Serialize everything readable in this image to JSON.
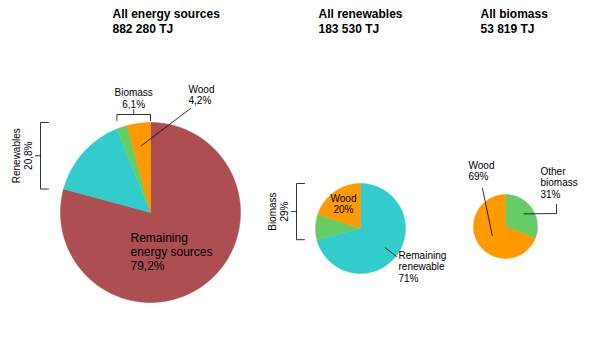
{
  "chart_data": [
    {
      "type": "pie",
      "title": "All energy sources",
      "subtitle": "882 280 TJ",
      "categories": [
        "Remaining\nenergy sources",
        null,
        null,
        "Wood"
      ],
      "values": [
        79.2,
        14.7,
        1.9,
        4.2
      ],
      "value_labels": [
        "79,2%",
        null,
        null,
        "4,2%"
      ],
      "colors": [
        "#ad4f52",
        "#33cccc",
        "#66cc66",
        "#ff9900"
      ],
      "data_labels": true,
      "groups": [
        {
          "name": "Renewables",
          "value": 20.8,
          "value_label": "20,8%"
        },
        {
          "name": "Biomass",
          "value": 6.1,
          "value_label": "6,1%"
        }
      ]
    },
    {
      "type": "pie",
      "title": "All renewables",
      "subtitle": "183 530 TJ",
      "categories": [
        "Remaining\nrenewable",
        null,
        "Wood"
      ],
      "values": [
        71,
        9,
        20
      ],
      "value_labels": [
        "71%",
        null,
        "20%"
      ],
      "colors": [
        "#33cccc",
        "#66cc66",
        "#ff9900"
      ],
      "data_labels": true,
      "groups": [
        {
          "name": "Biomass",
          "value": 29,
          "value_label": "29%"
        }
      ]
    },
    {
      "type": "pie",
      "title": "All biomass",
      "subtitle": "53 819 TJ",
      "categories": [
        "Other\nbiomass",
        "Wood"
      ],
      "values": [
        31,
        69
      ],
      "value_labels": [
        "31%",
        "69%"
      ],
      "colors": [
        "#66cc66",
        "#ff9900"
      ],
      "data_labels": true
    }
  ]
}
